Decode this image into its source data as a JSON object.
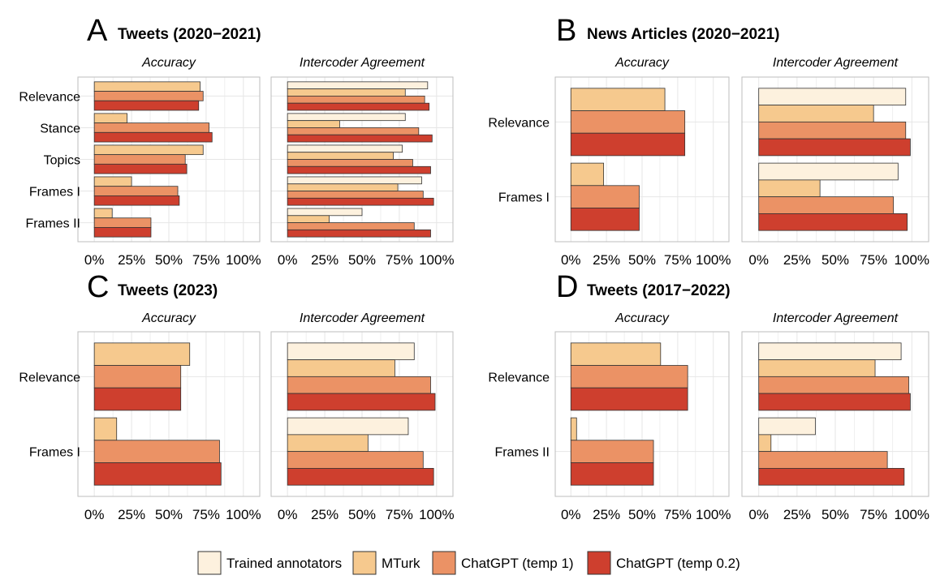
{
  "colors": {
    "trained": "#FDF1DE",
    "mturk": "#F6C98E",
    "chatgpt_t1": "#EB9265",
    "chatgpt_t02": "#CE3F2E",
    "grid": "#e6e6e6",
    "border": "#bdbdbd",
    "bar_stroke": "#333333"
  },
  "facets": {
    "accuracy": "Accuracy",
    "intercoder": "Intercoder Agreement"
  },
  "legend": {
    "items": [
      {
        "key": "trained",
        "label": "Trained annotators"
      },
      {
        "key": "mturk",
        "label": "MTurk"
      },
      {
        "key": "chatgpt_t1",
        "label": "ChatGPT (temp 1)"
      },
      {
        "key": "chatgpt_t02",
        "label": "ChatGPT (temp 0.2)"
      }
    ]
  },
  "chart_data": [
    {
      "type": "bar",
      "orientation": "horizontal",
      "letter": "A",
      "title": "Tweets (2020−2021)",
      "xlim": [
        0,
        100
      ],
      "x_ticks": [
        "0%",
        "25%",
        "50%",
        "75%",
        "100%"
      ],
      "categories": [
        "Relevance",
        "Stance",
        "Topics",
        "Frames I",
        "Frames II"
      ],
      "accuracy": [
        {
          "name": "MTurk",
          "key": "mturk",
          "values": [
            71,
            22,
            73,
            25,
            12
          ]
        },
        {
          "name": "ChatGPT (temp 1)",
          "key": "chatgpt_t1",
          "values": [
            73,
            77,
            61,
            56,
            38
          ]
        },
        {
          "name": "ChatGPT (temp 0.2)",
          "key": "chatgpt_t02",
          "values": [
            70,
            79,
            62,
            57,
            38
          ]
        }
      ],
      "intercoder": [
        {
          "name": "Trained annotators",
          "key": "trained",
          "values": [
            94,
            79,
            77,
            90,
            50
          ]
        },
        {
          "name": "MTurk",
          "key": "mturk",
          "values": [
            79,
            35,
            71,
            74,
            28
          ]
        },
        {
          "name": "ChatGPT (temp 1)",
          "key": "chatgpt_t1",
          "values": [
            92,
            88,
            84,
            91,
            85
          ]
        },
        {
          "name": "ChatGPT (temp 0.2)",
          "key": "chatgpt_t02",
          "values": [
            95,
            97,
            96,
            98,
            96
          ]
        }
      ]
    },
    {
      "type": "bar",
      "orientation": "horizontal",
      "letter": "B",
      "title": "News Articles (2020−2021)",
      "xlim": [
        0,
        100
      ],
      "x_ticks": [
        "0%",
        "25%",
        "50%",
        "75%",
        "100%"
      ],
      "categories": [
        "Relevance",
        "Frames I"
      ],
      "accuracy": [
        {
          "name": "MTurk",
          "key": "mturk",
          "values": [
            66,
            23
          ]
        },
        {
          "name": "ChatGPT (temp 1)",
          "key": "chatgpt_t1",
          "values": [
            80,
            48
          ]
        },
        {
          "name": "ChatGPT (temp 0.2)",
          "key": "chatgpt_t02",
          "values": [
            80,
            48
          ]
        }
      ],
      "intercoder": [
        {
          "name": "Trained annotators",
          "key": "trained",
          "values": [
            96,
            91
          ]
        },
        {
          "name": "MTurk",
          "key": "mturk",
          "values": [
            75,
            40
          ]
        },
        {
          "name": "ChatGPT (temp 1)",
          "key": "chatgpt_t1",
          "values": [
            96,
            88
          ]
        },
        {
          "name": "ChatGPT (temp 0.2)",
          "key": "chatgpt_t02",
          "values": [
            99,
            97
          ]
        }
      ]
    },
    {
      "type": "bar",
      "orientation": "horizontal",
      "letter": "C",
      "title": "Tweets (2023)",
      "xlim": [
        0,
        100
      ],
      "x_ticks": [
        "0%",
        "25%",
        "50%",
        "75%",
        "100%"
      ],
      "categories": [
        "Relevance",
        "Frames I"
      ],
      "accuracy": [
        {
          "name": "MTurk",
          "key": "mturk",
          "values": [
            64,
            15
          ]
        },
        {
          "name": "ChatGPT (temp 1)",
          "key": "chatgpt_t1",
          "values": [
            58,
            84
          ]
        },
        {
          "name": "ChatGPT (temp 0.2)",
          "key": "chatgpt_t02",
          "values": [
            58,
            85
          ]
        }
      ],
      "intercoder": [
        {
          "name": "Trained annotators",
          "key": "trained",
          "values": [
            85,
            81
          ]
        },
        {
          "name": "MTurk",
          "key": "mturk",
          "values": [
            72,
            54
          ]
        },
        {
          "name": "ChatGPT (temp 1)",
          "key": "chatgpt_t1",
          "values": [
            96,
            91
          ]
        },
        {
          "name": "ChatGPT (temp 0.2)",
          "key": "chatgpt_t02",
          "values": [
            99,
            98
          ]
        }
      ]
    },
    {
      "type": "bar",
      "orientation": "horizontal",
      "letter": "D",
      "title": "Tweets (2017−2022)",
      "xlim": [
        0,
        100
      ],
      "x_ticks": [
        "0%",
        "25%",
        "50%",
        "75%",
        "100%"
      ],
      "categories": [
        "Relevance",
        "Frames II"
      ],
      "accuracy": [
        {
          "name": "MTurk",
          "key": "mturk",
          "values": [
            63,
            4
          ]
        },
        {
          "name": "ChatGPT (temp 1)",
          "key": "chatgpt_t1",
          "values": [
            82,
            58
          ]
        },
        {
          "name": "ChatGPT (temp 0.2)",
          "key": "chatgpt_t02",
          "values": [
            82,
            58
          ]
        }
      ],
      "intercoder": [
        {
          "name": "Trained annotators",
          "key": "trained",
          "values": [
            93,
            37
          ]
        },
        {
          "name": "MTurk",
          "key": "mturk",
          "values": [
            76,
            8
          ]
        },
        {
          "name": "ChatGPT (temp 1)",
          "key": "chatgpt_t1",
          "values": [
            98,
            84
          ]
        },
        {
          "name": "ChatGPT (temp 0.2)",
          "key": "chatgpt_t02",
          "values": [
            99,
            95
          ]
        }
      ]
    }
  ]
}
